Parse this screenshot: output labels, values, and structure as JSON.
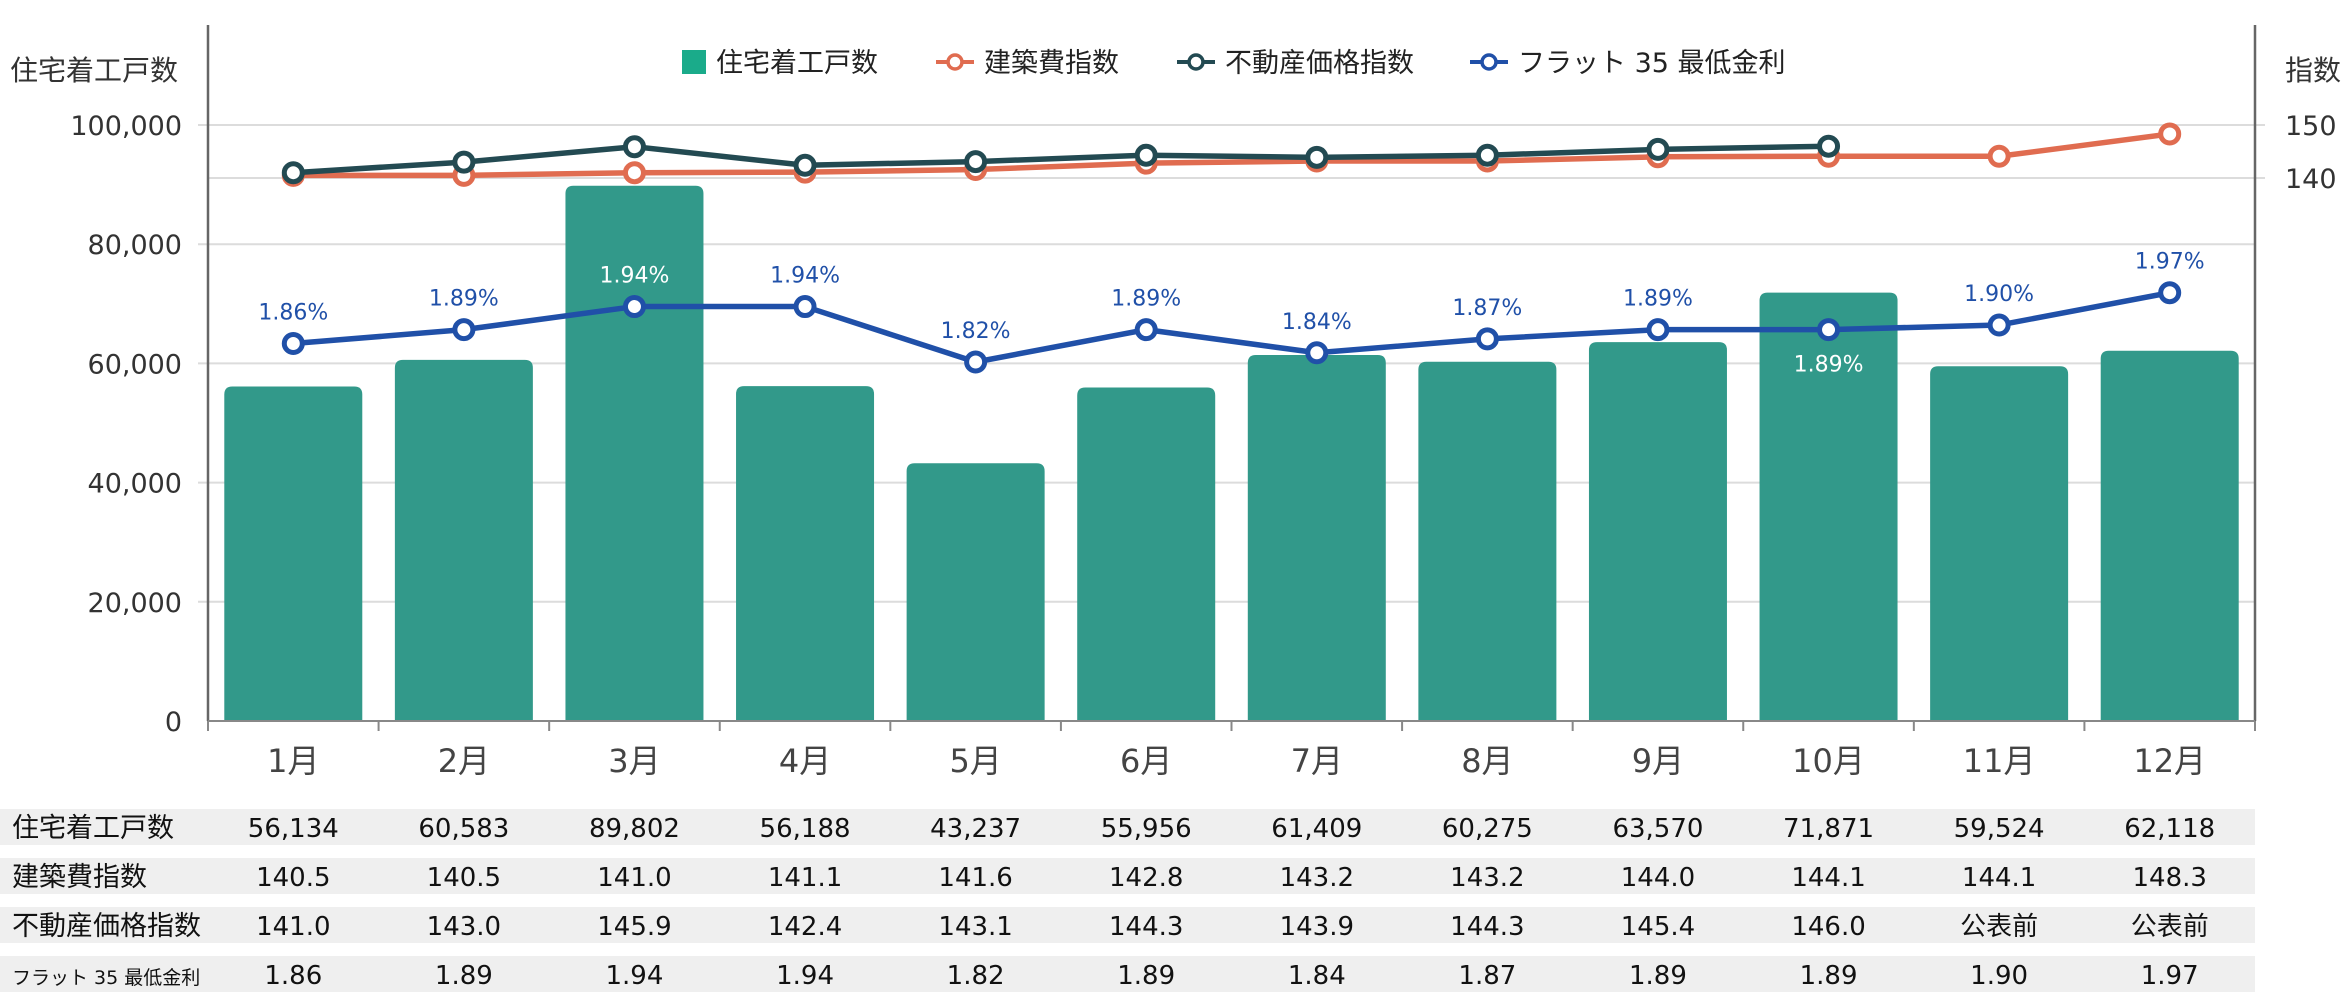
{
  "chart_data": {
    "type": "bar+line",
    "categories": [
      "1月",
      "2月",
      "3月",
      "4月",
      "5月",
      "6月",
      "7月",
      "8月",
      "9月",
      "10月",
      "11月",
      "12月"
    ],
    "y_left": {
      "label": "住宅着工戸数",
      "range": [
        0,
        100000
      ],
      "ticks": [
        "0",
        "20,000",
        "40,000",
        "60,000",
        "80,000",
        "100,000"
      ]
    },
    "y_right": {
      "label": "指数",
      "ticks": [
        "140",
        "150"
      ]
    },
    "grid": true,
    "legend_position": "top",
    "series": [
      {
        "name": "住宅着工戸数",
        "kind": "bar",
        "axis": "left",
        "color": "#32998a",
        "legend_color": "#1aab8a",
        "values": [
          56134,
          60583,
          89802,
          56188,
          43237,
          55956,
          61409,
          60275,
          63570,
          71871,
          59524,
          62118
        ]
      },
      {
        "name": "建築費指数",
        "kind": "line",
        "axis": "right",
        "color": "#e06c50",
        "values": [
          140.5,
          140.5,
          141.0,
          141.1,
          141.6,
          142.8,
          143.2,
          143.2,
          144.0,
          144.1,
          144.1,
          148.3
        ]
      },
      {
        "name": "不動産価格指数",
        "kind": "line",
        "axis": "right",
        "color": "#234a52",
        "values": [
          141.0,
          143.0,
          145.9,
          142.4,
          143.1,
          144.3,
          143.9,
          144.3,
          145.4,
          146.0,
          null,
          null
        ]
      },
      {
        "name": "フラット 35 最低金利",
        "kind": "line",
        "axis": "hidden",
        "color": "#2050a8",
        "values": [
          1.86,
          1.89,
          1.94,
          1.94,
          1.82,
          1.89,
          1.84,
          1.87,
          1.89,
          1.89,
          1.9,
          1.97
        ],
        "data_labels": [
          "1.86%",
          "1.89%",
          "1.94%",
          "1.94%",
          "1.82%",
          "1.89%",
          "1.84%",
          "1.87%",
          "1.89%",
          "1.89%",
          "1.90%",
          "1.97%"
        ]
      }
    ]
  },
  "table": {
    "rows": [
      {
        "label": "住宅着工戸数",
        "cells": [
          "56,134",
          "60,583",
          "89,802",
          "56,188",
          "43,237",
          "55,956",
          "61,409",
          "60,275",
          "63,570",
          "71,871",
          "59,524",
          "62,118"
        ]
      },
      {
        "label": "建築費指数",
        "cells": [
          "140.5",
          "140.5",
          "141.0",
          "141.1",
          "141.6",
          "142.8",
          "143.2",
          "143.2",
          "144.0",
          "144.1",
          "144.1",
          "148.3"
        ]
      },
      {
        "label": "不動産価格指数",
        "cells": [
          "141.0",
          "143.0",
          "145.9",
          "142.4",
          "143.1",
          "144.3",
          "143.9",
          "144.3",
          "145.4",
          "146.0",
          "公表前",
          "公表前"
        ]
      },
      {
        "label": "フラット 35 最低金利",
        "cells": [
          "1.86",
          "1.89",
          "1.94",
          "1.94",
          "1.82",
          "1.89",
          "1.84",
          "1.87",
          "1.89",
          "1.89",
          "1.90",
          "1.97"
        ]
      }
    ]
  }
}
